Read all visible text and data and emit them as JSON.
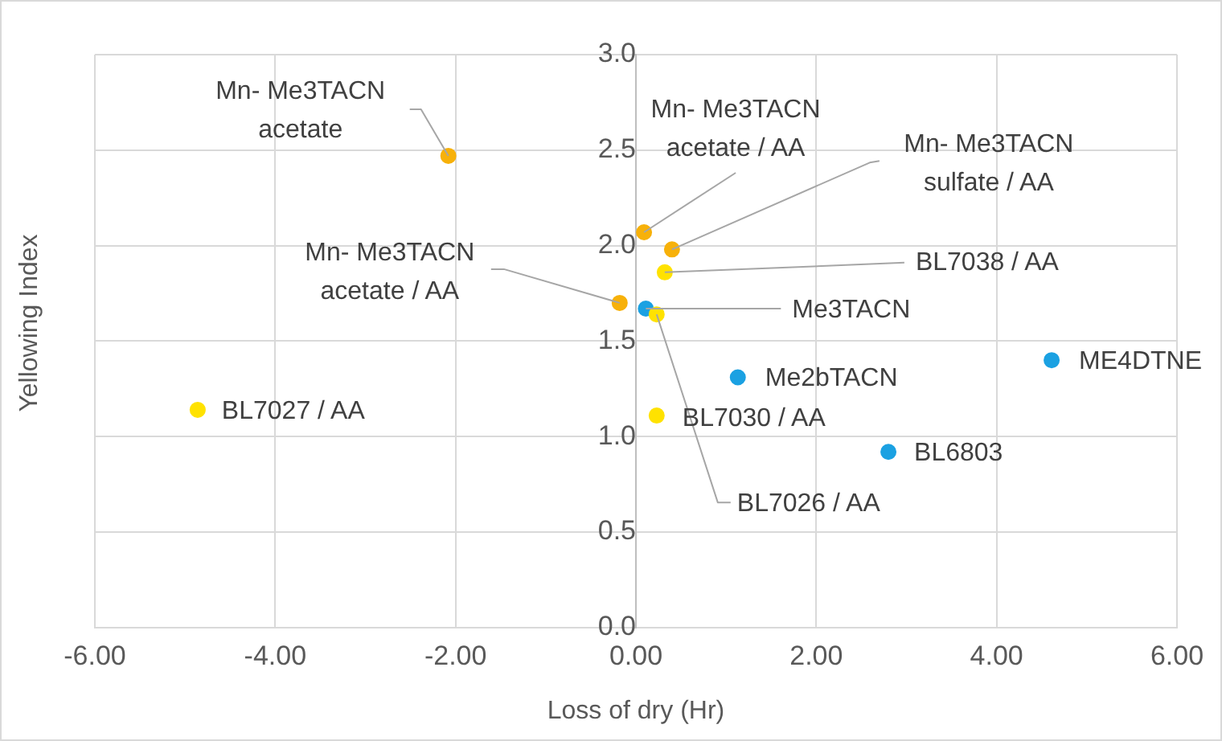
{
  "chart_data": {
    "type": "scatter",
    "xlabel": "Loss of dry (Hr)",
    "ylabel": "Yellowing Index",
    "xlim": [
      -6,
      6
    ],
    "xticks": [
      {
        "value": -6,
        "label": "-6.00"
      },
      {
        "value": -4,
        "label": "-4.00"
      },
      {
        "value": -2,
        "label": "-2.00"
      },
      {
        "value": 0,
        "label": "0.00"
      },
      {
        "value": 2,
        "label": "2.00"
      },
      {
        "value": 4,
        "label": "4.00"
      },
      {
        "value": 6,
        "label": "6.00"
      }
    ],
    "ylim": [
      0,
      3
    ],
    "yticks": [
      {
        "value": 0,
        "label": "0.0"
      },
      0.5,
      {
        "value": 1,
        "label": "1.0"
      },
      1.5,
      {
        "value": 2,
        "label": "2.0"
      },
      2.5,
      {
        "value": 3,
        "label": "3.0"
      }
    ],
    "grid": true,
    "legend": false,
    "marker": "circle",
    "series": [
      {
        "color": "#f7b10a",
        "x": [
          -2.08,
          -0.18,
          0.09,
          0.4
        ],
        "values": [
          2.47,
          1.7,
          2.07,
          1.98
        ]
      },
      {
        "color": "#ffe200",
        "x": [
          -4.86,
          0.32,
          0.23,
          0.23
        ],
        "values": [
          1.14,
          1.86,
          1.64,
          1.11
        ]
      },
      {
        "color": "#1ba1e2",
        "x": [
          0.11,
          1.13,
          2.8,
          4.61
        ],
        "values": [
          1.67,
          1.31,
          0.92,
          1.4
        ]
      }
    ],
    "annotations": [
      {
        "text": "Mn- Me3TACN\nacetate",
        "x": -2.08,
        "y": 2.47
      },
      {
        "text": "Mn- Me3TACN\nacetate / AA",
        "x": -0.18,
        "y": 1.7
      },
      {
        "text": "Mn- Me3TACN\nacetate / AA",
        "x": 0.09,
        "y": 2.07
      },
      {
        "text": "Mn- Me3TACN\nsulfate / AA",
        "x": 0.4,
        "y": 1.98
      },
      {
        "text": "BL7027 / AA",
        "x": -4.86,
        "y": 1.14
      },
      {
        "text": "BL7038 / AA",
        "x": 0.32,
        "y": 1.86
      },
      {
        "text": "BL7026 / AA",
        "x": 0.23,
        "y": 1.64
      },
      {
        "text": "BL7030 / AA",
        "x": 0.23,
        "y": 1.11
      },
      {
        "text": "Me3TACN",
        "x": 0.11,
        "y": 1.67
      },
      {
        "text": "Me2bTACN",
        "x": 1.13,
        "y": 1.31
      },
      {
        "text": "BL6803",
        "x": 2.8,
        "y": 0.92
      },
      {
        "text": "ME4DTNE",
        "x": 4.61,
        "y": 1.4
      }
    ]
  }
}
